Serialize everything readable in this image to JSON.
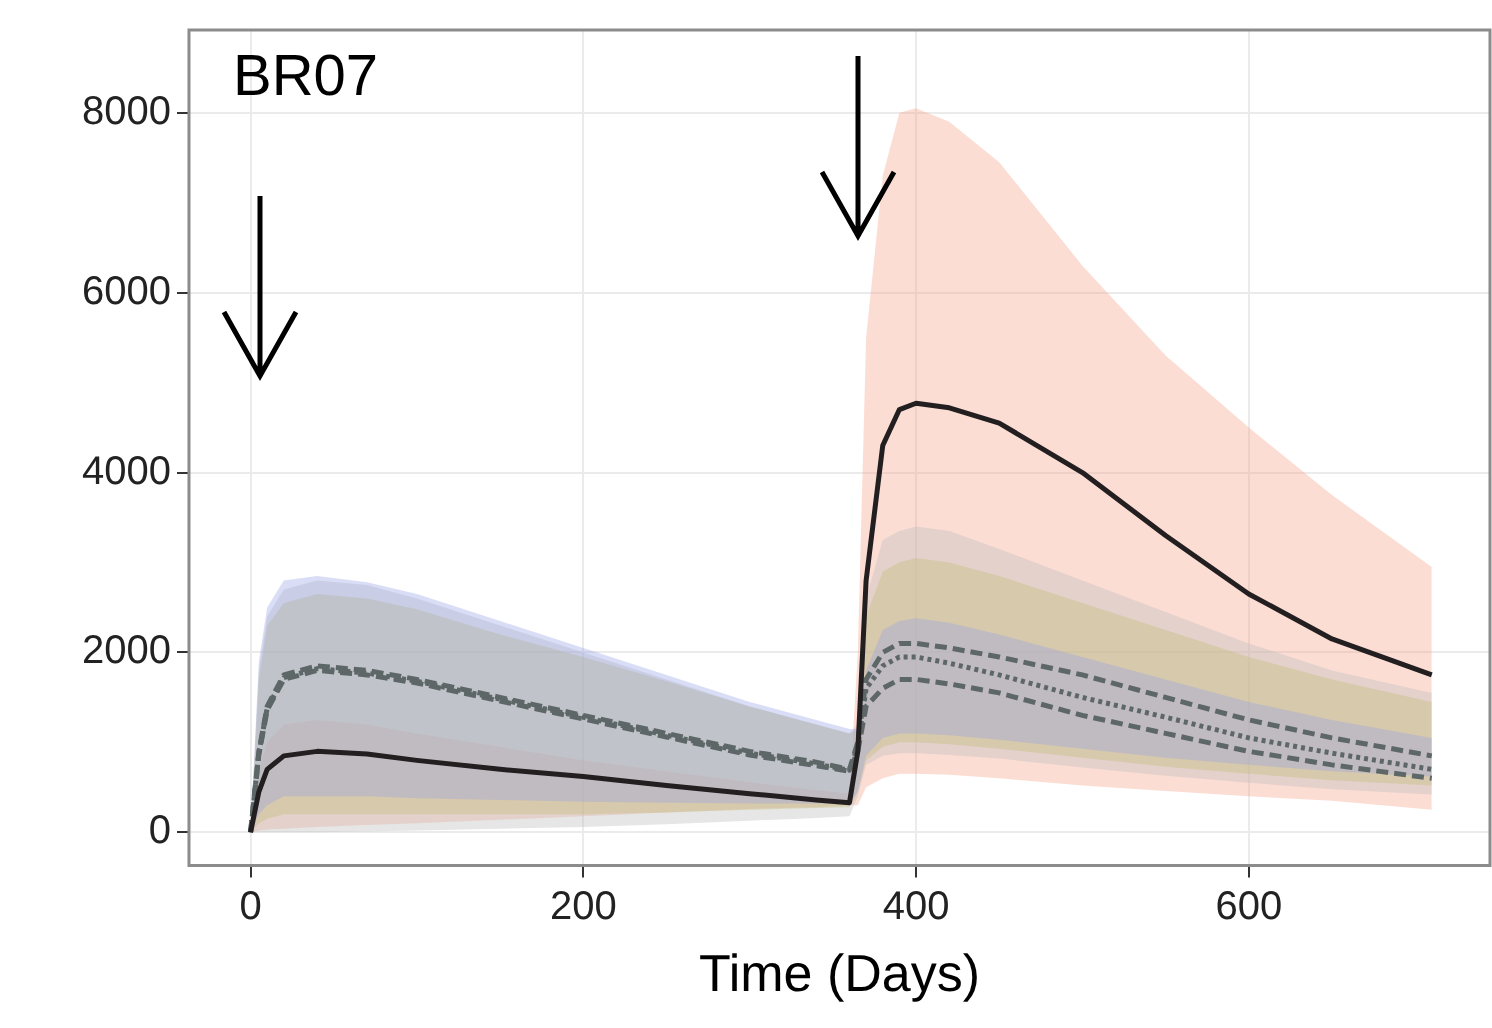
{
  "chart_data": {
    "type": "line",
    "title": "BR07",
    "xlabel": "Time (Days)",
    "x": [
      0,
      5,
      10,
      20,
      40,
      70,
      100,
      150,
      200,
      250,
      300,
      340,
      360,
      365,
      370,
      380,
      390,
      400,
      420,
      450,
      500,
      550,
      600,
      650,
      710
    ],
    "series": [
      {
        "color": "#231f20",
        "line_style": "solid",
        "values": [
          0,
          450,
          700,
          850,
          900,
          870,
          800,
          700,
          620,
          520,
          430,
          360,
          330,
          900,
          2800,
          4300,
          4700,
          4770,
          4720,
          4550,
          4000,
          3300,
          2650,
          2150,
          1750
        ],
        "upper": [
          0,
          700,
          1000,
          1200,
          1250,
          1200,
          1100,
          950,
          800,
          680,
          560,
          470,
          430,
          2000,
          5500,
          7300,
          8000,
          8050,
          7900,
          7450,
          6300,
          5300,
          4500,
          3750,
          2950
        ],
        "lower": [
          0,
          20,
          30,
          40,
          60,
          80,
          100,
          140,
          180,
          220,
          260,
          280,
          300,
          300,
          500,
          600,
          650,
          650,
          640,
          600,
          520,
          460,
          400,
          350,
          250
        ]
      },
      {
        "color": "#5e6767",
        "line_style": "dashed",
        "values": [
          0,
          900,
          1400,
          1750,
          1850,
          1800,
          1700,
          1500,
          1300,
          1100,
          900,
          780,
          700,
          1000,
          1700,
          2000,
          2100,
          2100,
          2050,
          1950,
          1750,
          1500,
          1250,
          1050,
          850
        ],
        "upper": [
          0,
          1800,
          2400,
          2700,
          2800,
          2750,
          2600,
          2300,
          2000,
          1700,
          1400,
          1200,
          1100,
          1200,
          2600,
          3250,
          3350,
          3400,
          3350,
          3150,
          2800,
          2450,
          2100,
          1800,
          1550
        ],
        "lower": [
          0,
          0,
          0,
          0,
          0,
          10,
          20,
          40,
          60,
          90,
          130,
          160,
          180,
          400,
          750,
          850,
          880,
          880,
          860,
          820,
          720,
          630,
          550,
          480,
          420
        ]
      },
      {
        "color": "#5e6767",
        "line_style": "dotted",
        "values": [
          0,
          880,
          1380,
          1720,
          1820,
          1770,
          1680,
          1480,
          1280,
          1080,
          880,
          760,
          690,
          950,
          1600,
          1850,
          1950,
          1950,
          1880,
          1750,
          1500,
          1280,
          1050,
          880,
          700
        ],
        "upper": [
          0,
          1700,
          2300,
          2550,
          2650,
          2600,
          2480,
          2200,
          1950,
          1680,
          1400,
          1200,
          1100,
          1150,
          2400,
          2900,
          3000,
          3050,
          3000,
          2850,
          2550,
          2250,
          1950,
          1700,
          1450
        ],
        "lower": [
          0,
          100,
          150,
          200,
          200,
          200,
          200,
          200,
          200,
          220,
          250,
          270,
          280,
          450,
          800,
          950,
          1000,
          1000,
          980,
          930,
          830,
          730,
          650,
          580,
          520
        ]
      },
      {
        "color": "#5e6767",
        "line_style": "dashed",
        "values": [
          0,
          860,
          1360,
          1700,
          1800,
          1750,
          1660,
          1460,
          1260,
          1060,
          860,
          740,
          680,
          900,
          1400,
          1600,
          1700,
          1700,
          1650,
          1550,
          1300,
          1100,
          900,
          750,
          600
        ],
        "upper": [
          0,
          1900,
          2500,
          2800,
          2850,
          2780,
          2650,
          2350,
          2050,
          1750,
          1450,
          1250,
          1150,
          1150,
          1800,
          2250,
          2350,
          2380,
          2330,
          2200,
          1950,
          1700,
          1450,
          1250,
          1050
        ],
        "lower": [
          0,
          200,
          300,
          400,
          400,
          400,
          380,
          360,
          340,
          330,
          320,
          320,
          320,
          450,
          850,
          1050,
          1100,
          1100,
          1080,
          1030,
          930,
          830,
          750,
          680,
          620
        ]
      }
    ],
    "xlim": [
      -37,
      745
    ],
    "xticks": [
      0,
      200,
      400,
      600
    ],
    "ylim": [
      -370,
      8920
    ],
    "yticks": [
      0,
      2000,
      4000,
      6000,
      8000
    ],
    "grid": true,
    "legend": false
  }
}
